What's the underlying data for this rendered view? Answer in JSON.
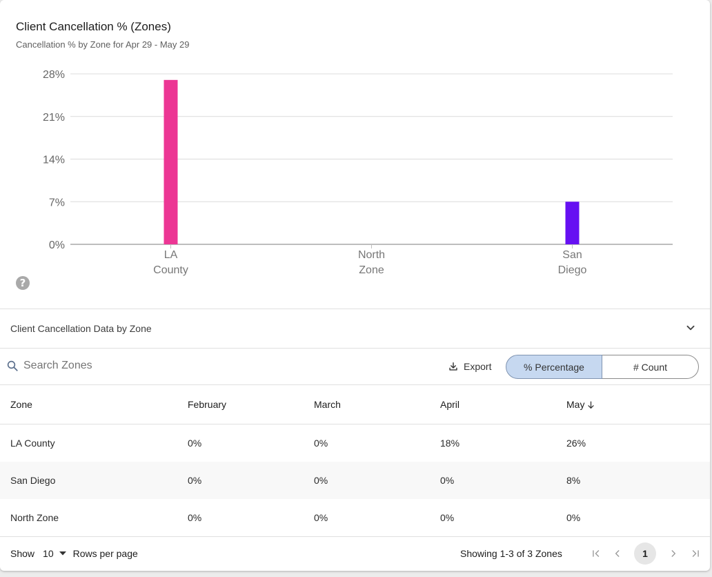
{
  "header": {
    "title": "Client Cancellation % (Zones)",
    "subtitle": "Cancellation % by Zone for Apr 29 - May 29"
  },
  "chart_data": {
    "type": "bar",
    "categories": [
      [
        "LA",
        "County"
      ],
      [
        "North",
        "Zone"
      ],
      [
        "San",
        "Diego"
      ]
    ],
    "values": [
      27,
      0,
      7
    ],
    "colors": [
      "#ec3694",
      "#ec3694",
      "#6610f2"
    ],
    "ylim": [
      0,
      28
    ],
    "yticks": [
      0,
      7,
      14,
      21,
      28
    ],
    "ytick_labels": [
      "0%",
      "7%",
      "14%",
      "21%",
      "28%"
    ],
    "grid": true
  },
  "icons": {
    "help": "question-circle-icon",
    "collapse": "chevron-down-icon",
    "search": "search-icon",
    "export": "download-icon",
    "sort": "arrow-down-icon"
  },
  "help_glyph": "?",
  "section": {
    "title": "Client Cancellation Data by Zone"
  },
  "toolbar": {
    "search_placeholder": "Search Zones",
    "export_label": "Export",
    "toggle_percentage": "% Percentage",
    "toggle_count": "# Count",
    "selected_mode": "% Percentage"
  },
  "table": {
    "headers": [
      "Zone",
      "February",
      "March",
      "April",
      "May"
    ],
    "sorted_column": "May",
    "rows": [
      [
        "LA County",
        "0%",
        "0%",
        "18%",
        "26%"
      ],
      [
        "San Diego",
        "0%",
        "0%",
        "0%",
        "8%"
      ],
      [
        "North Zone",
        "0%",
        "0%",
        "0%",
        "0%"
      ]
    ]
  },
  "footer": {
    "show_label": "Show",
    "rows_per_page": "10",
    "rows_per_page_label": "Rows per page",
    "showing_text": "Showing 1-3 of 3 Zones",
    "current_page": "1"
  }
}
